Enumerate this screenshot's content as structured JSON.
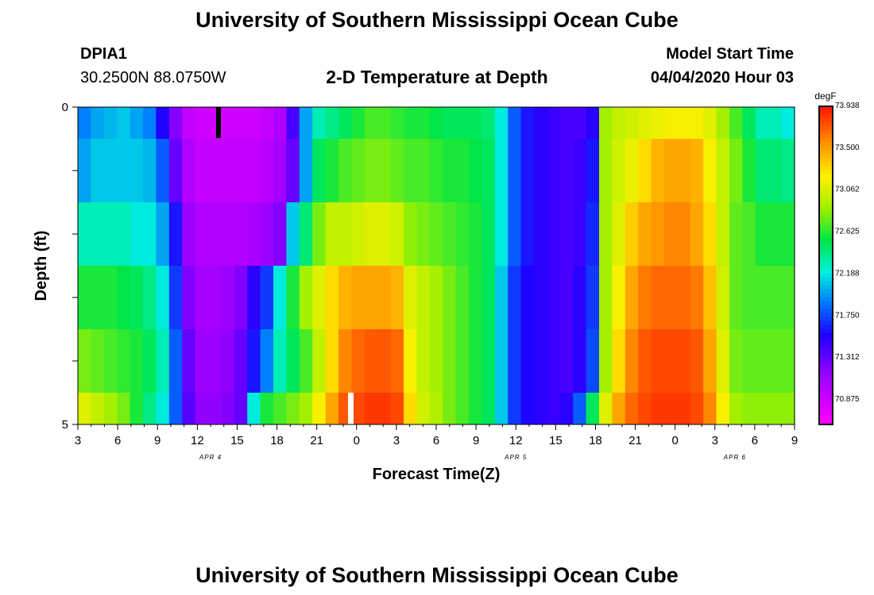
{
  "header": {
    "title": "University of Southern Mississippi Ocean Cube",
    "station": "DPIA1",
    "coords": "30.2500N 88.0750W",
    "plot_title": "2-D Temperature at Depth",
    "model_label": "Model Start Time",
    "model_time": "04/04/2020 Hour 03"
  },
  "footer": {
    "title": "University of Southern Mississippi Ocean Cube"
  },
  "chart_data": {
    "type": "heatmap",
    "title": "2-D Temperature at Depth",
    "xlabel": "Forecast Time(Z)",
    "ylabel": "Depth (ft)",
    "x_hours_start": 3,
    "x_hours_end": 57,
    "x_tick_labels": [
      "3",
      "6",
      "9",
      "12",
      "15",
      "18",
      "21",
      "0",
      "3",
      "6",
      "9",
      "12",
      "15",
      "18",
      "21",
      "0",
      "3",
      "6",
      "9"
    ],
    "date_labels": [
      {
        "label": "APR 4",
        "at_hour": 13
      },
      {
        "label": "APR 5",
        "at_hour": 36
      },
      {
        "label": "APR 6",
        "at_hour": 52.5
      }
    ],
    "y_range": [
      0,
      5
    ],
    "y_tick_labels": [
      "0",
      "",
      "",
      "",
      "",
      "5"
    ],
    "colorbar": {
      "unit": "degF",
      "min": 70.6,
      "max": 73.96,
      "labels": [
        "73.938",
        "73.500",
        "73.062",
        "72.625",
        "72.188",
        "71.750",
        "71.312",
        "70.875"
      ]
    },
    "rows": [
      {
        "depth": "0-0.5",
        "values": [
          71.9,
          72.0,
          72.05,
          72.1,
          72.0,
          71.9,
          71.55,
          71.2,
          70.9,
          70.85,
          70.85,
          70.85,
          70.85,
          70.85,
          70.9,
          71.0,
          71.4,
          72.0,
          72.3,
          72.4,
          72.5,
          72.6,
          72.7,
          72.7,
          72.65,
          72.6,
          72.6,
          72.55,
          72.5,
          72.5,
          72.5,
          72.45,
          72.2,
          71.8,
          71.6,
          71.5,
          71.45,
          71.4,
          71.4,
          71.5,
          72.9,
          73.0,
          73.05,
          73.1,
          73.15,
          73.2,
          73.2,
          73.2,
          73.1,
          72.9,
          72.7,
          72.5,
          72.3,
          72.3,
          72.2
        ]
      },
      {
        "depth": "0.5-1.5",
        "values": [
          72.0,
          72.1,
          72.1,
          72.1,
          72.1,
          72.05,
          71.8,
          71.3,
          71.0,
          70.9,
          70.9,
          70.9,
          70.9,
          70.9,
          70.95,
          71.05,
          71.3,
          72.0,
          72.5,
          72.6,
          72.7,
          72.75,
          72.8,
          72.8,
          72.75,
          72.7,
          72.7,
          72.65,
          72.6,
          72.6,
          72.55,
          72.5,
          72.2,
          71.8,
          71.6,
          71.5,
          71.45,
          71.4,
          71.45,
          71.6,
          72.9,
          73.05,
          73.15,
          73.3,
          73.45,
          73.5,
          73.5,
          73.45,
          73.2,
          73.0,
          72.8,
          72.6,
          72.45,
          72.45,
          72.4
        ]
      },
      {
        "depth": "1.5-2.5",
        "values": [
          72.3,
          72.3,
          72.3,
          72.3,
          72.2,
          72.2,
          72.0,
          71.6,
          71.1,
          71.0,
          71.0,
          71.0,
          71.0,
          71.05,
          71.1,
          71.2,
          72.1,
          72.45,
          72.8,
          73.0,
          73.0,
          73.05,
          73.1,
          73.1,
          73.05,
          72.85,
          72.8,
          72.75,
          72.7,
          72.65,
          72.6,
          72.5,
          72.2,
          71.8,
          71.6,
          71.5,
          71.45,
          71.4,
          71.45,
          71.65,
          72.9,
          73.1,
          73.35,
          73.5,
          73.55,
          73.6,
          73.6,
          73.5,
          73.3,
          73.0,
          72.75,
          72.7,
          72.6,
          72.6,
          72.6
        ]
      },
      {
        "depth": "2.5-3.5",
        "values": [
          72.6,
          72.6,
          72.6,
          72.55,
          72.5,
          72.4,
          72.2,
          71.7,
          71.2,
          71.05,
          71.05,
          71.1,
          71.2,
          71.5,
          71.7,
          72.2,
          72.6,
          72.9,
          73.1,
          73.3,
          73.45,
          73.5,
          73.5,
          73.5,
          73.45,
          73.1,
          73.0,
          72.9,
          72.8,
          72.7,
          72.6,
          72.5,
          72.1,
          71.7,
          71.55,
          71.5,
          71.45,
          71.4,
          71.5,
          71.7,
          72.9,
          73.2,
          73.5,
          73.65,
          73.7,
          73.7,
          73.7,
          73.65,
          73.4,
          73.05,
          72.75,
          72.7,
          72.7,
          72.7,
          72.7
        ]
      },
      {
        "depth": "3.5-4.5",
        "values": [
          72.8,
          72.75,
          72.7,
          72.65,
          72.6,
          72.5,
          72.3,
          71.8,
          71.3,
          71.1,
          71.1,
          71.15,
          71.3,
          71.6,
          71.9,
          72.3,
          72.5,
          72.7,
          73.0,
          73.3,
          73.6,
          73.7,
          73.75,
          73.75,
          73.7,
          73.2,
          73.0,
          72.9,
          72.8,
          72.7,
          72.6,
          72.5,
          72.1,
          71.7,
          71.55,
          71.5,
          71.45,
          71.4,
          71.5,
          71.75,
          72.9,
          73.3,
          73.6,
          73.75,
          73.8,
          73.8,
          73.8,
          73.75,
          73.5,
          73.1,
          72.8,
          72.75,
          72.75,
          72.75,
          72.75
        ]
      },
      {
        "depth": "4.5-5",
        "values": [
          73.1,
          73.0,
          72.9,
          72.8,
          72.6,
          72.4,
          72.2,
          71.8,
          71.35,
          71.15,
          71.15,
          71.2,
          71.3,
          72.2,
          72.6,
          72.7,
          72.8,
          72.9,
          73.2,
          73.5,
          73.75,
          73.8,
          73.85,
          73.85,
          73.8,
          73.3,
          73.05,
          72.95,
          72.8,
          72.7,
          72.6,
          72.5,
          72.1,
          71.7,
          71.55,
          71.5,
          71.45,
          71.5,
          71.8,
          72.5,
          73.1,
          73.5,
          73.7,
          73.8,
          73.85,
          73.85,
          73.85,
          73.8,
          73.6,
          73.2,
          72.9,
          72.85,
          72.85,
          72.85,
          72.85
        ]
      }
    ]
  }
}
